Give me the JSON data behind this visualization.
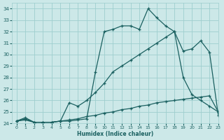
{
  "xlabel": "Humidex (Indice chaleur)",
  "bg_color": "#cce8e8",
  "grid_color": "#9ecece",
  "line_color": "#1a6060",
  "xlim": [
    -0.5,
    23
  ],
  "ylim": [
    24,
    34.5
  ],
  "xticks": [
    0,
    1,
    2,
    3,
    4,
    5,
    6,
    7,
    8,
    9,
    10,
    11,
    12,
    13,
    14,
    15,
    16,
    17,
    18,
    19,
    20,
    21,
    22,
    23
  ],
  "yticks": [
    24,
    25,
    26,
    27,
    28,
    29,
    30,
    31,
    32,
    33,
    34
  ],
  "line1_x": [
    0,
    1,
    2,
    3,
    4,
    5,
    6,
    7,
    8,
    9,
    10,
    11,
    12,
    13,
    14,
    15,
    16,
    17,
    18,
    19,
    20,
    21,
    22,
    23
  ],
  "line1_y": [
    24.2,
    24.5,
    24.1,
    24.1,
    24.1,
    24.2,
    24.2,
    24.3,
    24.4,
    28.5,
    32.0,
    32.2,
    32.5,
    32.5,
    32.2,
    34.0,
    33.2,
    32.5,
    32.0,
    30.3,
    30.5,
    31.2,
    30.2,
    24.7
  ],
  "line2_x": [
    0,
    1,
    2,
    3,
    4,
    5,
    6,
    7,
    8,
    9,
    10,
    11,
    12,
    13,
    14,
    15,
    16,
    17,
    18,
    19,
    20,
    21,
    22,
    23
  ],
  "line2_y": [
    24.2,
    24.4,
    24.1,
    24.1,
    24.1,
    24.2,
    25.8,
    25.5,
    26.0,
    26.7,
    27.5,
    28.5,
    29.0,
    29.5,
    30.0,
    30.5,
    31.0,
    31.5,
    32.0,
    28.0,
    26.5,
    26.0,
    25.5,
    25.0
  ],
  "line3_x": [
    0,
    1,
    2,
    3,
    4,
    5,
    6,
    7,
    8,
    9,
    10,
    11,
    12,
    13,
    14,
    15,
    16,
    17,
    18,
    19,
    20,
    21,
    22,
    23
  ],
  "line3_y": [
    24.2,
    24.3,
    24.1,
    24.1,
    24.1,
    24.2,
    24.3,
    24.4,
    24.6,
    24.7,
    24.9,
    25.0,
    25.2,
    25.3,
    25.5,
    25.6,
    25.8,
    25.9,
    26.0,
    26.1,
    26.2,
    26.3,
    26.4,
    25.0
  ]
}
